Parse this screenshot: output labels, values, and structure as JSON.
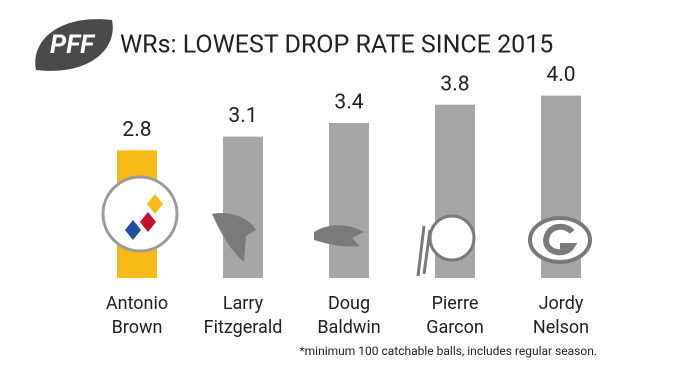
{
  "brand": "PFF",
  "chart_data": {
    "type": "bar",
    "title": "WRs: LOWEST DROP RATE SINCE 2015",
    "categories": [
      "Antonio Brown",
      "Larry Fitzgerald",
      "Doug Baldwin",
      "Pierre Garcon",
      "Jordy Nelson"
    ],
    "values": [
      2.8,
      3.1,
      3.4,
      3.8,
      4.0
    ],
    "value_labels": [
      "2.8",
      "3.1",
      "3.4",
      "3.8",
      "4.0"
    ],
    "colors": [
      "#f5b918",
      "#a6a6a6",
      "#a6a6a6",
      "#a6a6a6",
      "#a6a6a6"
    ],
    "footnote": "*minimum 100 catchable balls, includes regular season."
  }
}
